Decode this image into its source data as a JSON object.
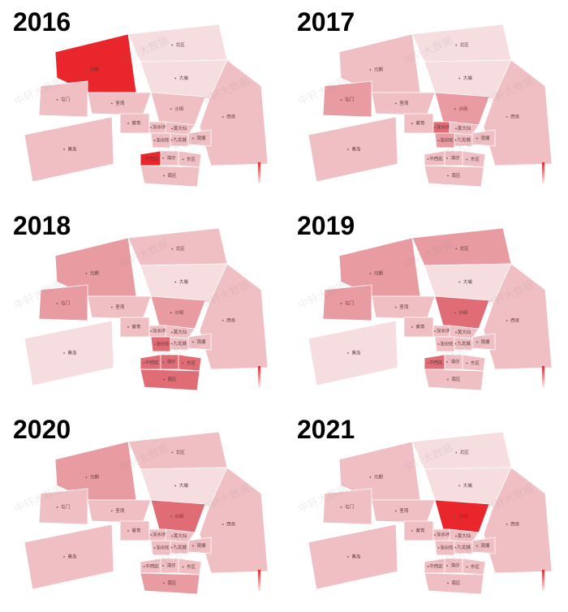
{
  "watermark": "中轩大数据",
  "districts": [
    "元朗",
    "屯门",
    "北区",
    "大埔",
    "荃湾",
    "沙田",
    "西贡",
    "葵青",
    "深水埗",
    "黄大仙",
    "观塘",
    "九龙城",
    "油尖旺",
    "中西区",
    "湾仔",
    "东区",
    "南区",
    "离岛"
  ],
  "maps": [
    {
      "year": "2016",
      "colors": [
        "#e8262b",
        "#f0bfc4",
        "#f6dde0",
        "#f6dde0",
        "#f0bfc4",
        "#f0bfc4",
        "#f0bfc4",
        "#f0bfc4",
        "#f0bfc4",
        "#f0bfc4",
        "#f0bfc4",
        "#f0bfc4",
        "#f0bfc4",
        "#e8262b",
        "#f0bfc4",
        "#f0bfc4",
        "#f0bfc4",
        "#f0bfc4"
      ]
    },
    {
      "year": "2017",
      "colors": [
        "#f0bfc4",
        "#e99ba2",
        "#f6dde0",
        "#f6dde0",
        "#f0bfc4",
        "#e99ba2",
        "#f0bfc4",
        "#f0bfc4",
        "#e06c76",
        "#f0bfc4",
        "#f0bfc4",
        "#f0bfc4",
        "#e99ba2",
        "#f0bfc4",
        "#f0bfc4",
        "#f0bfc4",
        "#f0bfc4",
        "#f0bfc4"
      ]
    },
    {
      "year": "2018",
      "colors": [
        "#e99ba2",
        "#e99ba2",
        "#f0bfc4",
        "#f6dde0",
        "#f0bfc4",
        "#e99ba2",
        "#f0bfc4",
        "#f0bfc4",
        "#f0bfc4",
        "#f0bfc4",
        "#f0bfc4",
        "#f0bfc4",
        "#e06c76",
        "#e06c76",
        "#e06c76",
        "#e06c76",
        "#e06c76",
        "#f6dde0"
      ]
    },
    {
      "year": "2019",
      "colors": [
        "#e99ba2",
        "#e99ba2",
        "#e99ba2",
        "#f6dde0",
        "#f0bfc4",
        "#e06c76",
        "#f0bfc4",
        "#f0bfc4",
        "#f0bfc4",
        "#f0bfc4",
        "#f0bfc4",
        "#f0bfc4",
        "#f0bfc4",
        "#e06c76",
        "#f0bfc4",
        "#f0bfc4",
        "#f0bfc4",
        "#f6dde0"
      ]
    },
    {
      "year": "2020",
      "colors": [
        "#e99ba2",
        "#f0bfc4",
        "#f0bfc4",
        "#f6dde0",
        "#f0bfc4",
        "#e06c76",
        "#f0bfc4",
        "#f0bfc4",
        "#f0bfc4",
        "#f0bfc4",
        "#f0bfc4",
        "#f0bfc4",
        "#f0bfc4",
        "#f0bfc4",
        "#f0bfc4",
        "#f0bfc4",
        "#e99ba2",
        "#f0bfc4"
      ]
    },
    {
      "year": "2021",
      "colors": [
        "#f0bfc4",
        "#f0bfc4",
        "#f6dde0",
        "#f6dde0",
        "#f0bfc4",
        "#e8262b",
        "#f0bfc4",
        "#f0bfc4",
        "#f0bfc4",
        "#f0bfc4",
        "#f0bfc4",
        "#f0bfc4",
        "#f0bfc4",
        "#f0bfc4",
        "#f0bfc4",
        "#f0bfc4",
        "#f0bfc4",
        "#f0bfc4"
      ]
    }
  ]
}
